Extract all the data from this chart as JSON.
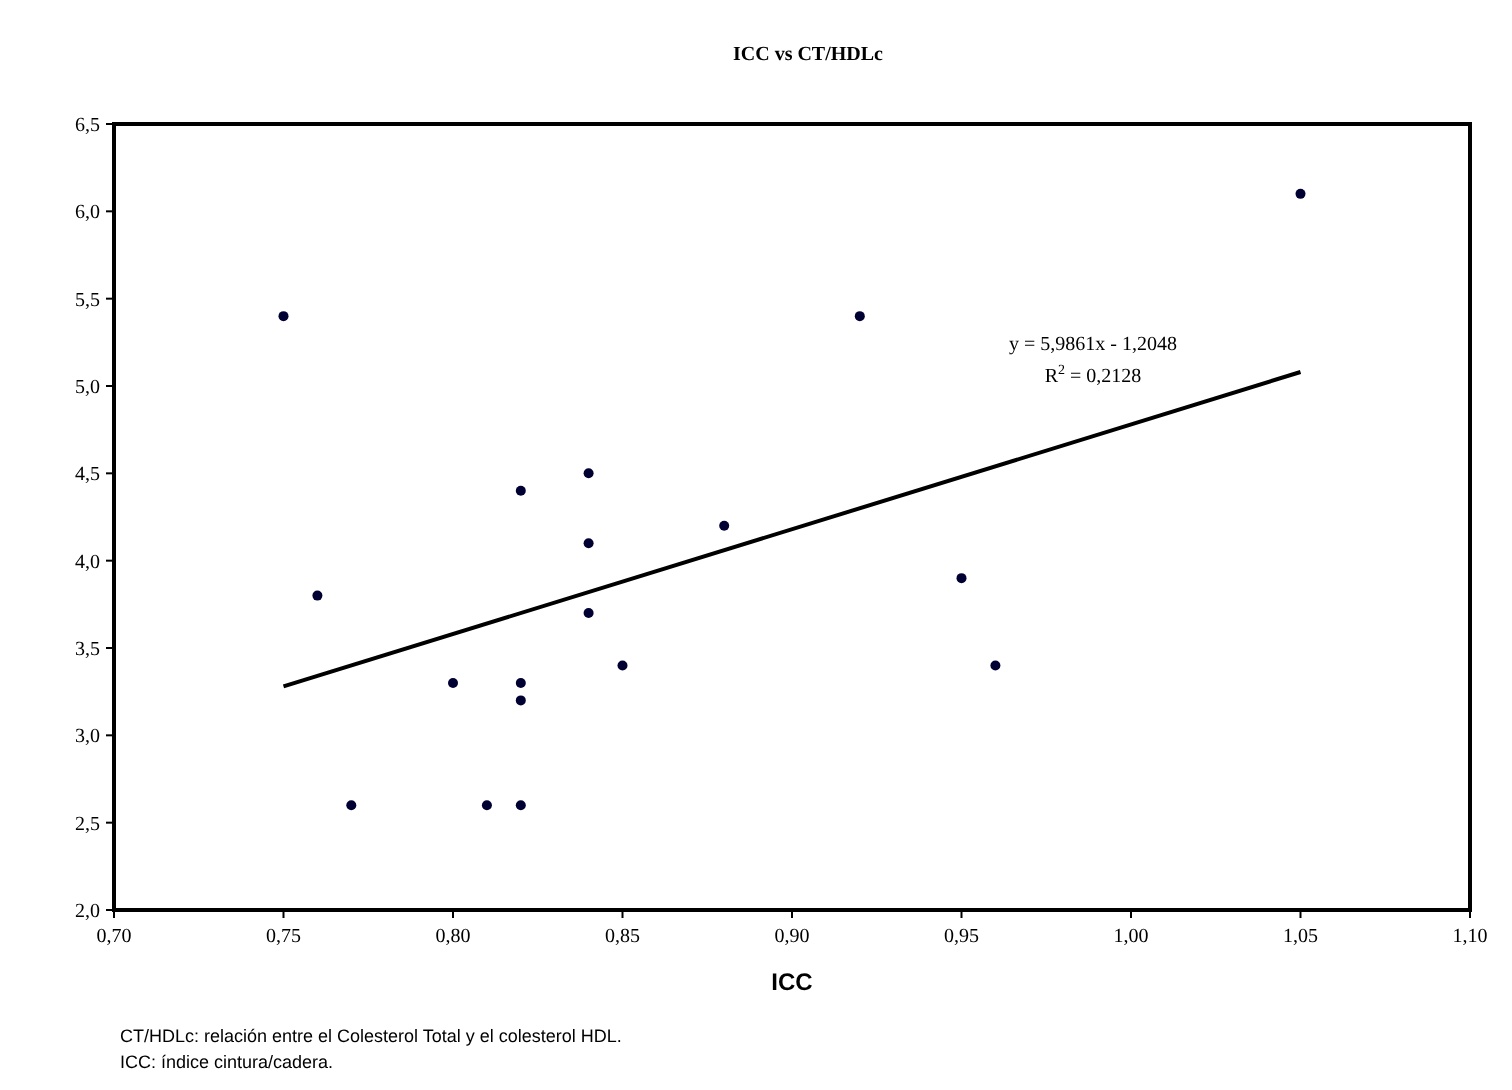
{
  "chart_data": {
    "type": "scatter",
    "title": "ICC vs CT/HDLc",
    "xlabel": "ICC",
    "xlim": [
      0.7,
      1.1
    ],
    "xticks": [
      {
        "value": 0.7,
        "label": "0,70"
      },
      {
        "value": 0.75,
        "label": "0,75"
      },
      {
        "value": 0.8,
        "label": "0,80"
      },
      {
        "value": 0.85,
        "label": "0,85"
      },
      {
        "value": 0.9,
        "label": "0,90"
      },
      {
        "value": 0.95,
        "label": "0,95"
      },
      {
        "value": 1.0,
        "label": "1,00"
      },
      {
        "value": 1.05,
        "label": "1,05"
      },
      {
        "value": 1.1,
        "label": "1,10"
      }
    ],
    "ylim": [
      2.0,
      6.5
    ],
    "yticks": [
      {
        "value": 2.0,
        "label": "2,0"
      },
      {
        "value": 2.5,
        "label": "2,5"
      },
      {
        "value": 3.0,
        "label": "3,0"
      },
      {
        "value": 3.5,
        "label": "3,5"
      },
      {
        "value": 4.0,
        "label": "4,0"
      },
      {
        "value": 4.5,
        "label": "4,5"
      },
      {
        "value": 5.0,
        "label": "5,0"
      },
      {
        "value": 5.5,
        "label": "5,5"
      },
      {
        "value": 6.0,
        "label": "6,0"
      },
      {
        "value": 6.5,
        "label": "6,5"
      }
    ],
    "grid": false,
    "series": [
      {
        "marker": "circle",
        "color": "#000033",
        "x": [
          0.75,
          0.76,
          0.77,
          0.8,
          0.81,
          0.82,
          0.82,
          0.82,
          0.82,
          0.84,
          0.84,
          0.84,
          0.85,
          0.88,
          0.92,
          0.95,
          0.96,
          1.05
        ],
        "values": [
          5.4,
          3.8,
          2.6,
          3.3,
          2.6,
          4.4,
          3.3,
          3.2,
          2.6,
          4.5,
          4.1,
          3.7,
          3.4,
          4.2,
          5.4,
          3.9,
          3.4,
          6.1
        ]
      },
      {
        "type": "line",
        "color": "#000000",
        "line_style": "solid",
        "x": [
          0.75,
          1.05
        ],
        "values": [
          3.28,
          5.08
        ]
      }
    ],
    "annotations": [
      "y = 5,9861x - 1,2048",
      "R$^{2}$ = 0,2128",
      "CT/HDLc: relación entre el Colesterol Total y el colesterol HDL.",
      "ICC: índice cintura/cadera."
    ]
  }
}
